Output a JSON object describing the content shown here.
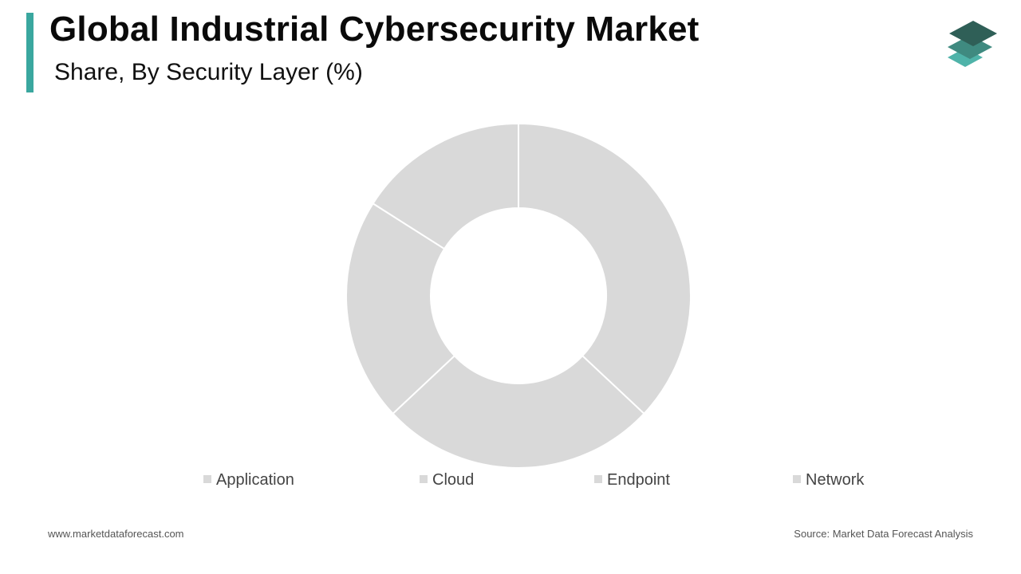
{
  "header": {
    "title": "Global Industrial Cybersecurity Market",
    "subtitle": "Share, By Security Layer (%)"
  },
  "footer": {
    "website": "www.marketdataforecast.com",
    "source": "Source: Market Data Forecast Analysis"
  },
  "colors": {
    "accent": "#3aa79f",
    "slice": "#d9d9d9",
    "slice_border": "#ffffff",
    "logo_dark": "#2f5f57",
    "logo_mid": "#3f8a80",
    "logo_light": "#4fb3a9"
  },
  "chart_data": {
    "type": "pie",
    "style": "donut",
    "title": "Share, By Security Layer (%)",
    "categories": [
      "Application",
      "Cloud",
      "Endpoint",
      "Network"
    ],
    "values": [
      37,
      26,
      21,
      16
    ],
    "unit": "%",
    "legend_position": "bottom",
    "data_labels_shown": false
  }
}
